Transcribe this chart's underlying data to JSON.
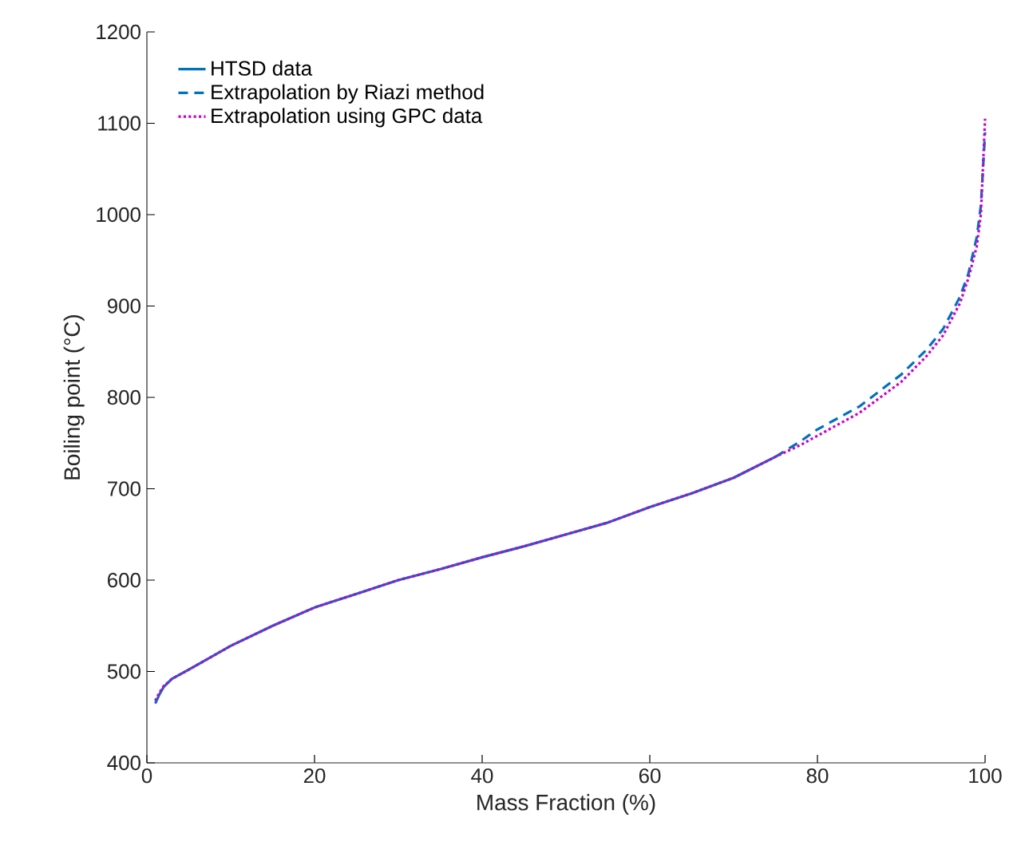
{
  "chart_data": {
    "type": "line",
    "xlabel": "Mass Fraction (%)",
    "ylabel": "Boiling point (°C)",
    "xlim": [
      0,
      100
    ],
    "ylim": [
      400,
      1200
    ],
    "xticks": [
      0,
      20,
      40,
      60,
      80,
      100
    ],
    "yticks": [
      400,
      500,
      600,
      700,
      800,
      900,
      1000,
      1100,
      1200
    ],
    "legend": "top left",
    "grid": false,
    "series": [
      {
        "name": "HTSD data",
        "color": "#0072bd",
        "line_style": "solid",
        "x": [
          1,
          1.5,
          2,
          3,
          5,
          7.5,
          10,
          15,
          20,
          25,
          30,
          35,
          40,
          45,
          50,
          55,
          60,
          65,
          70,
          75
        ],
        "values": [
          465,
          475,
          483,
          492,
          502,
          515,
          528,
          550,
          570,
          585,
          600,
          612,
          625,
          637,
          650,
          663,
          680,
          695,
          712,
          735
        ]
      },
      {
        "name": "Extrapolation by Riazi method",
        "color": "#0072bd",
        "line_style": "dashed",
        "x": [
          75,
          78,
          80,
          85,
          90,
          93,
          95,
          97,
          98,
          99,
          99.5,
          100
        ],
        "values": [
          735,
          752,
          765,
          790,
          825,
          852,
          875,
          910,
          935,
          975,
          1010,
          1090
        ]
      },
      {
        "name": "Extrapolation using GPC data",
        "color": "#cc00cc",
        "line_style": "dotted",
        "x": [
          1,
          1.5,
          2,
          3,
          5,
          7.5,
          10,
          15,
          20,
          25,
          30,
          35,
          40,
          45,
          50,
          55,
          60,
          65,
          70,
          75,
          78,
          80,
          85,
          90,
          93,
          95,
          97,
          98,
          99,
          99.5,
          100
        ],
        "values": [
          468,
          477,
          484,
          492,
          502,
          515,
          528,
          550,
          570,
          585,
          600,
          612,
          625,
          637,
          650,
          663,
          680,
          695,
          712,
          735,
          748,
          758,
          783,
          817,
          845,
          868,
          903,
          930,
          965,
          1000,
          1105
        ]
      }
    ]
  }
}
